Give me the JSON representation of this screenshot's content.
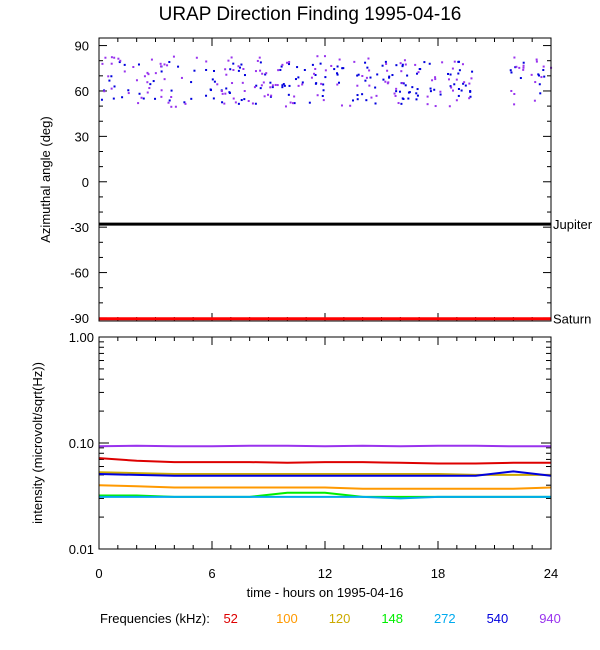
{
  "title": "URAP Direction Finding  1995-04-16",
  "chart_data": [
    {
      "type": "scatter",
      "ylabel": "Azimuthal angle (deg)",
      "ylim": [
        -92,
        95
      ],
      "xlim": [
        0,
        24
      ],
      "yticks": [
        "90",
        "60",
        "30",
        "0",
        "-30",
        "-60",
        "-90"
      ],
      "reference_lines": [
        {
          "name": "Jupiter",
          "y": -28,
          "color": "#000000"
        },
        {
          "name": "Saturn",
          "y": -90.5,
          "color": "#ff0000"
        }
      ],
      "series": [
        {
          "name": "540",
          "color": "#0000dd",
          "spread": [
            52,
            80
          ]
        },
        {
          "name": "940",
          "color": "#9933ee",
          "spread": [
            50,
            84
          ]
        }
      ]
    },
    {
      "type": "line",
      "ylabel": "intensity (microvolt/sqrt(Hz))",
      "yscale": "log",
      "ylim": [
        0.01,
        1.0
      ],
      "xlim": [
        0,
        24
      ],
      "yticks": [
        "1.00",
        "0.10",
        "0.01"
      ],
      "xticks": [
        "0",
        "6",
        "12",
        "18",
        "24"
      ],
      "xlabel": "time - hours on 1995-04-16",
      "series": [
        {
          "name": "940",
          "color": "#9933ee",
          "values": [
            0.093,
            0.094,
            0.093,
            0.093,
            0.094,
            0.094,
            0.093,
            0.094,
            0.093,
            0.094,
            0.094,
            0.093,
            0.093
          ]
        },
        {
          "name": "52",
          "color": "#dd0000",
          "values": [
            0.072,
            0.068,
            0.066,
            0.066,
            0.066,
            0.065,
            0.066,
            0.066,
            0.065,
            0.064,
            0.064,
            0.065,
            0.065
          ]
        },
        {
          "name": "120",
          "color": "#ccaa00",
          "values": [
            0.053,
            0.052,
            0.051,
            0.051,
            0.051,
            0.051,
            0.051,
            0.051,
            0.051,
            0.051,
            0.05,
            0.05,
            0.05
          ]
        },
        {
          "name": "540",
          "color": "#0000dd",
          "values": [
            0.051,
            0.05,
            0.049,
            0.049,
            0.049,
            0.049,
            0.049,
            0.049,
            0.049,
            0.049,
            0.049,
            0.054,
            0.049
          ]
        },
        {
          "name": "100",
          "color": "#ff9900",
          "values": [
            0.04,
            0.039,
            0.038,
            0.038,
            0.038,
            0.038,
            0.038,
            0.037,
            0.037,
            0.037,
            0.037,
            0.037,
            0.038
          ]
        },
        {
          "name": "148",
          "color": "#00ee00",
          "values": [
            0.032,
            0.032,
            0.031,
            0.031,
            0.031,
            0.034,
            0.034,
            0.031,
            0.031,
            0.031,
            0.031,
            0.031,
            0.031
          ]
        },
        {
          "name": "272",
          "color": "#00aaee",
          "values": [
            0.031,
            0.031,
            0.031,
            0.031,
            0.031,
            0.031,
            0.031,
            0.031,
            0.03,
            0.031,
            0.031,
            0.031,
            0.031
          ]
        }
      ]
    }
  ],
  "legend": {
    "label": "Frequencies (kHz):",
    "items": [
      {
        "label": "52",
        "color": "#dd0000"
      },
      {
        "label": "100",
        "color": "#ff9900"
      },
      {
        "label": "120",
        "color": "#ccaa00"
      },
      {
        "label": "148",
        "color": "#00ee00"
      },
      {
        "label": "272",
        "color": "#00aaee"
      },
      {
        "label": "540",
        "color": "#0000dd"
      },
      {
        "label": "940",
        "color": "#9933ee"
      }
    ]
  }
}
